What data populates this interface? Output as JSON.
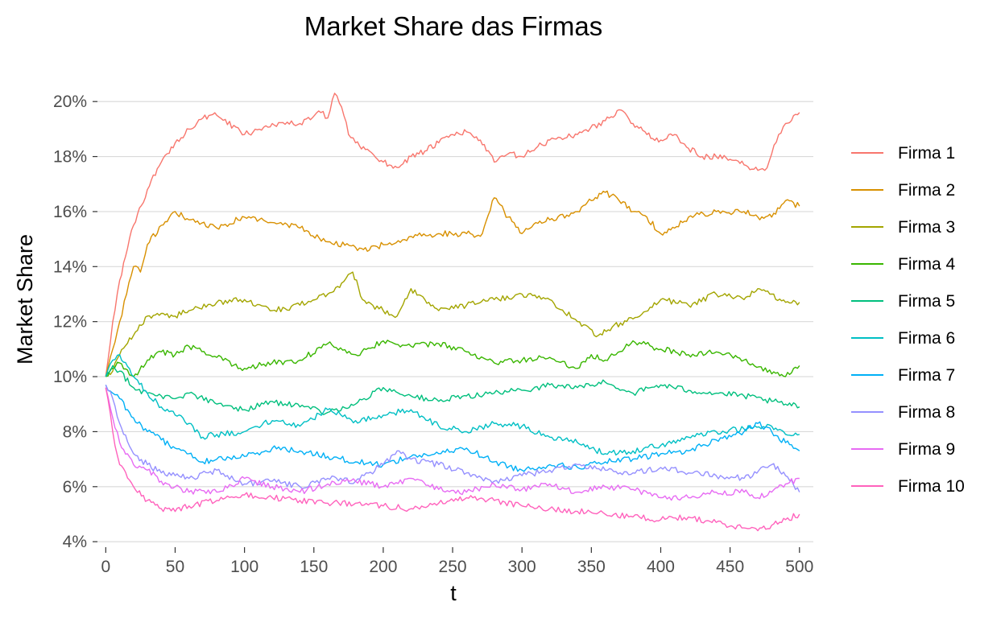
{
  "chart_data": {
    "type": "line",
    "title": "Market Share das Firmas",
    "xlabel": "t",
    "ylabel": "Market Share",
    "xlim": [
      -6,
      510
    ],
    "ylim": [
      0.038,
      0.21
    ],
    "x_ticks": [
      0,
      50,
      100,
      150,
      200,
      250,
      300,
      350,
      400,
      450,
      500
    ],
    "y_ticks": [
      0.04,
      0.06,
      0.08,
      0.1,
      0.12,
      0.14,
      0.16,
      0.18,
      0.2
    ],
    "y_tick_labels": [
      "4%",
      "6%",
      "8%",
      "10%",
      "12%",
      "14%",
      "16%",
      "18%",
      "20%"
    ],
    "grid": true,
    "legend_position": "right",
    "series": [
      {
        "name": "Firma 1",
        "color": "#F8766D",
        "x": [
          0,
          5,
          10,
          20,
          30,
          40,
          50,
          60,
          70,
          80,
          100,
          120,
          140,
          155,
          160,
          165,
          170,
          175,
          180,
          190,
          200,
          210,
          220,
          230,
          240,
          250,
          260,
          270,
          280,
          290,
          300,
          310,
          320,
          340,
          360,
          370,
          380,
          390,
          400,
          410,
          420,
          430,
          440,
          450,
          460,
          470,
          475,
          480,
          485,
          490,
          500
        ],
        "y": [
          0.1,
          0.12,
          0.135,
          0.155,
          0.168,
          0.178,
          0.185,
          0.19,
          0.194,
          0.195,
          0.188,
          0.192,
          0.192,
          0.196,
          0.194,
          0.203,
          0.198,
          0.188,
          0.185,
          0.182,
          0.178,
          0.176,
          0.18,
          0.182,
          0.185,
          0.188,
          0.189,
          0.186,
          0.178,
          0.181,
          0.18,
          0.183,
          0.186,
          0.188,
          0.193,
          0.197,
          0.192,
          0.188,
          0.186,
          0.188,
          0.183,
          0.18,
          0.18,
          0.179,
          0.177,
          0.175,
          0.175,
          0.181,
          0.188,
          0.192,
          0.196
        ]
      },
      {
        "name": "Firma 2",
        "color": "#D89000",
        "x": [
          0,
          5,
          10,
          15,
          20,
          25,
          30,
          40,
          50,
          60,
          80,
          100,
          120,
          140,
          160,
          180,
          190,
          200,
          220,
          240,
          260,
          270,
          280,
          290,
          300,
          310,
          320,
          340,
          350,
          360,
          370,
          380,
          390,
          400,
          410,
          420,
          440,
          460,
          470,
          480,
          490,
          500
        ],
        "y": [
          0.1,
          0.11,
          0.12,
          0.13,
          0.14,
          0.138,
          0.148,
          0.155,
          0.16,
          0.157,
          0.154,
          0.158,
          0.156,
          0.154,
          0.149,
          0.147,
          0.146,
          0.148,
          0.151,
          0.152,
          0.152,
          0.151,
          0.165,
          0.158,
          0.152,
          0.156,
          0.157,
          0.16,
          0.164,
          0.167,
          0.164,
          0.16,
          0.158,
          0.152,
          0.154,
          0.158,
          0.16,
          0.16,
          0.158,
          0.158,
          0.164,
          0.162
        ]
      },
      {
        "name": "Firma 3",
        "color": "#A3A500",
        "x": [
          0,
          5,
          10,
          20,
          30,
          40,
          50,
          60,
          80,
          100,
          120,
          140,
          160,
          170,
          178,
          185,
          200,
          210,
          220,
          230,
          240,
          260,
          280,
          300,
          320,
          340,
          355,
          365,
          380,
          400,
          420,
          440,
          460,
          470,
          480,
          490,
          500
        ],
        "y": [
          0.1,
          0.102,
          0.108,
          0.115,
          0.122,
          0.123,
          0.122,
          0.124,
          0.127,
          0.128,
          0.124,
          0.126,
          0.13,
          0.134,
          0.138,
          0.128,
          0.124,
          0.122,
          0.132,
          0.128,
          0.124,
          0.126,
          0.128,
          0.13,
          0.128,
          0.12,
          0.115,
          0.118,
          0.121,
          0.128,
          0.126,
          0.13,
          0.128,
          0.132,
          0.13,
          0.127,
          0.127
        ]
      },
      {
        "name": "Firma 4",
        "color": "#39B600",
        "x": [
          0,
          5,
          10,
          20,
          30,
          40,
          50,
          60,
          80,
          100,
          120,
          140,
          160,
          180,
          200,
          220,
          240,
          260,
          280,
          300,
          320,
          340,
          350,
          360,
          380,
          400,
          420,
          440,
          460,
          480,
          490,
          500
        ],
        "y": [
          0.1,
          0.103,
          0.105,
          0.1,
          0.106,
          0.109,
          0.108,
          0.111,
          0.107,
          0.103,
          0.105,
          0.106,
          0.112,
          0.108,
          0.113,
          0.111,
          0.112,
          0.109,
          0.105,
          0.106,
          0.107,
          0.103,
          0.108,
          0.106,
          0.113,
          0.11,
          0.108,
          0.109,
          0.106,
          0.101,
          0.1,
          0.104
        ]
      },
      {
        "name": "Firma 5",
        "color": "#00BF7D",
        "x": [
          0,
          5,
          10,
          20,
          30,
          40,
          50,
          60,
          80,
          100,
          120,
          140,
          160,
          180,
          200,
          220,
          240,
          260,
          280,
          300,
          320,
          340,
          360,
          380,
          400,
          420,
          440,
          460,
          480,
          490,
          500
        ],
        "y": [
          0.1,
          0.104,
          0.102,
          0.096,
          0.094,
          0.093,
          0.092,
          0.094,
          0.09,
          0.088,
          0.091,
          0.089,
          0.087,
          0.09,
          0.096,
          0.093,
          0.091,
          0.093,
          0.094,
          0.095,
          0.097,
          0.096,
          0.098,
          0.094,
          0.097,
          0.095,
          0.094,
          0.093,
          0.091,
          0.09,
          0.089
        ]
      },
      {
        "name": "Firma 6",
        "color": "#00BFC4",
        "x": [
          0,
          5,
          10,
          20,
          30,
          40,
          50,
          60,
          70,
          80,
          100,
          120,
          140,
          160,
          180,
          200,
          220,
          240,
          260,
          280,
          300,
          320,
          340,
          350,
          360,
          380,
          400,
          420,
          440,
          460,
          480,
          490,
          500
        ],
        "y": [
          0.1,
          0.106,
          0.108,
          0.1,
          0.094,
          0.089,
          0.086,
          0.083,
          0.078,
          0.079,
          0.08,
          0.084,
          0.082,
          0.088,
          0.084,
          0.086,
          0.088,
          0.082,
          0.08,
          0.083,
          0.082,
          0.078,
          0.076,
          0.074,
          0.072,
          0.073,
          0.075,
          0.078,
          0.08,
          0.081,
          0.082,
          0.079,
          0.079
        ]
      },
      {
        "name": "Firma 7",
        "color": "#00B0F6",
        "x": [
          0,
          5,
          10,
          20,
          30,
          40,
          50,
          60,
          70,
          80,
          100,
          120,
          140,
          160,
          180,
          200,
          220,
          240,
          260,
          280,
          300,
          320,
          340,
          360,
          380,
          400,
          420,
          440,
          460,
          470,
          480,
          490,
          500
        ],
        "y": [
          0.097,
          0.094,
          0.092,
          0.085,
          0.08,
          0.077,
          0.074,
          0.072,
          0.069,
          0.07,
          0.071,
          0.074,
          0.073,
          0.071,
          0.069,
          0.068,
          0.071,
          0.072,
          0.074,
          0.069,
          0.066,
          0.068,
          0.067,
          0.069,
          0.07,
          0.072,
          0.073,
          0.077,
          0.08,
          0.083,
          0.08,
          0.076,
          0.073
        ]
      },
      {
        "name": "Firma 8",
        "color": "#9590FF",
        "x": [
          0,
          5,
          10,
          20,
          30,
          40,
          50,
          60,
          80,
          100,
          120,
          140,
          160,
          180,
          200,
          210,
          220,
          240,
          260,
          280,
          300,
          320,
          340,
          360,
          380,
          400,
          420,
          440,
          460,
          480,
          490,
          500
        ],
        "y": [
          0.097,
          0.092,
          0.083,
          0.072,
          0.068,
          0.065,
          0.064,
          0.063,
          0.066,
          0.061,
          0.062,
          0.06,
          0.063,
          0.062,
          0.068,
          0.073,
          0.07,
          0.068,
          0.065,
          0.062,
          0.064,
          0.066,
          0.068,
          0.066,
          0.065,
          0.067,
          0.065,
          0.064,
          0.063,
          0.068,
          0.064,
          0.058
        ]
      },
      {
        "name": "Firma 9",
        "color": "#E76BF3",
        "x": [
          0,
          5,
          10,
          20,
          30,
          40,
          50,
          60,
          80,
          100,
          120,
          140,
          160,
          180,
          200,
          220,
          240,
          260,
          280,
          300,
          320,
          340,
          360,
          380,
          400,
          420,
          440,
          460,
          470,
          480,
          490,
          500
        ],
        "y": [
          0.096,
          0.085,
          0.076,
          0.068,
          0.066,
          0.062,
          0.06,
          0.058,
          0.058,
          0.063,
          0.06,
          0.058,
          0.061,
          0.062,
          0.06,
          0.063,
          0.059,
          0.058,
          0.061,
          0.059,
          0.061,
          0.058,
          0.06,
          0.059,
          0.056,
          0.056,
          0.058,
          0.058,
          0.056,
          0.058,
          0.061,
          0.063
        ]
      },
      {
        "name": "Firma 10",
        "color": "#FF62BC",
        "x": [
          0,
          5,
          10,
          20,
          30,
          40,
          50,
          60,
          80,
          100,
          120,
          140,
          160,
          180,
          200,
          220,
          240,
          260,
          280,
          300,
          320,
          340,
          360,
          380,
          400,
          420,
          440,
          460,
          470,
          480,
          490,
          500
        ],
        "y": [
          0.096,
          0.08,
          0.068,
          0.06,
          0.055,
          0.052,
          0.051,
          0.053,
          0.055,
          0.057,
          0.056,
          0.055,
          0.054,
          0.054,
          0.053,
          0.052,
          0.054,
          0.056,
          0.055,
          0.053,
          0.052,
          0.051,
          0.05,
          0.049,
          0.048,
          0.049,
          0.047,
          0.045,
          0.044,
          0.046,
          0.048,
          0.05
        ]
      }
    ]
  }
}
